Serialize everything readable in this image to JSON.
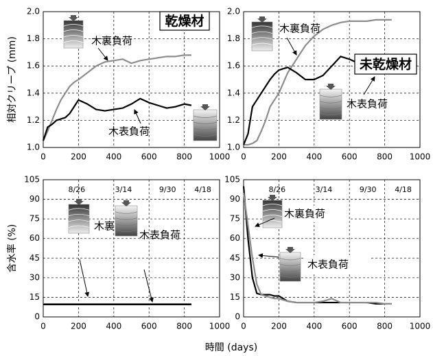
{
  "chart_data": [
    {
      "type": "line",
      "title": "乾燥材",
      "ylabel": "相対クリープ (mm)",
      "x": [
        0,
        25,
        50,
        75,
        100,
        125,
        150,
        175,
        200,
        250,
        300,
        350,
        400,
        450,
        500,
        550,
        600,
        650,
        700,
        750,
        800,
        840
      ],
      "xlim": [
        0,
        1000
      ],
      "xticks": [
        0,
        200,
        400,
        600,
        800,
        1000
      ],
      "ylim": [
        1,
        2
      ],
      "yticks": [
        {
          "value": 1,
          "label": "1.0"
        },
        1.2,
        1.4,
        1.6,
        1.8,
        {
          "value": 2,
          "label": "2.0"
        }
      ],
      "grid": true,
      "series": [
        {
          "name": "木裏負荷",
          "color": "#8c8c8c",
          "values": [
            1.05,
            1.12,
            1.2,
            1.28,
            1.35,
            1.4,
            1.45,
            1.48,
            1.5,
            1.55,
            1.6,
            1.63,
            1.64,
            1.65,
            1.62,
            1.64,
            1.65,
            1.66,
            1.67,
            1.67,
            1.68,
            1.68
          ]
        },
        {
          "name": "木表負荷",
          "color": "#000000",
          "values": [
            1.05,
            1.15,
            1.17,
            1.2,
            1.21,
            1.22,
            1.25,
            1.3,
            1.35,
            1.32,
            1.28,
            1.27,
            1.28,
            1.29,
            1.32,
            1.36,
            1.33,
            1.31,
            1.29,
            1.3,
            1.32,
            1.31
          ]
        }
      ]
    },
    {
      "type": "line",
      "title": "未乾燥材",
      "x": [
        0,
        25,
        50,
        75,
        100,
        125,
        150,
        175,
        200,
        250,
        300,
        350,
        400,
        450,
        500,
        550,
        600,
        650,
        700,
        750,
        800,
        840
      ],
      "xlim": [
        0,
        1000
      ],
      "xticks": [
        0,
        200,
        400,
        600,
        800,
        1000
      ],
      "ylim": [
        1,
        2
      ],
      "yticks": [
        {
          "value": 1,
          "label": "1.0"
        },
        1.2,
        1.4,
        1.6,
        1.8,
        {
          "value": 2,
          "label": "2.0"
        }
      ],
      "grid": true,
      "series": [
        {
          "name": "木裏負荷",
          "color": "#8c8c8c",
          "values": [
            1.02,
            1.02,
            1.03,
            1.05,
            1.12,
            1.2,
            1.3,
            1.35,
            1.4,
            1.55,
            1.65,
            1.75,
            1.82,
            1.87,
            1.9,
            1.92,
            1.93,
            1.93,
            1.93,
            1.94,
            1.94,
            1.94
          ]
        },
        {
          "name": "木表負荷",
          "color": "#000000",
          "values": [
            1.02,
            1.1,
            1.3,
            1.35,
            1.4,
            1.45,
            1.5,
            1.54,
            1.57,
            1.59,
            1.55,
            1.5,
            1.5,
            1.53,
            1.6,
            1.67,
            1.65,
            1.62,
            1.6,
            1.58,
            1.61,
            1.63
          ]
        }
      ]
    },
    {
      "type": "line",
      "ylabel": "含水率 (%)",
      "xlabel": "時間 (days)",
      "x": [
        0,
        25,
        50,
        75,
        100,
        125,
        150,
        175,
        200,
        250,
        300,
        350,
        400,
        450,
        500,
        550,
        600,
        650,
        700,
        750,
        800,
        840
      ],
      "xlim": [
        0,
        1000
      ],
      "xticks": [
        0,
        200,
        400,
        600,
        800,
        1000
      ],
      "ylim": [
        0,
        105
      ],
      "yticks": [
        0,
        15,
        30,
        45,
        60,
        75,
        90,
        105
      ],
      "grid": true,
      "dates": [
        {
          "value": 190,
          "label": "8/26"
        },
        {
          "value": 455,
          "label": "3/14"
        },
        {
          "value": 705,
          "label": "9/30"
        },
        {
          "value": 905,
          "label": "4/18"
        }
      ],
      "series": [
        {
          "name": "木裏負荷",
          "color": "#8c8c8c",
          "values": [
            10,
            10,
            10,
            10,
            10,
            10,
            10,
            10,
            10,
            10,
            10,
            10,
            10,
            10,
            10,
            10,
            10,
            10,
            10,
            10,
            10,
            10
          ]
        },
        {
          "name": "木表負荷",
          "color": "#000000",
          "values": [
            9.5,
            9.5,
            9.5,
            9.5,
            9.5,
            9.5,
            9.5,
            9.5,
            9.5,
            9.5,
            9.5,
            9.5,
            9.5,
            9.5,
            9.5,
            9.5,
            9.5,
            9.5,
            9.5,
            9.5,
            9.5,
            9.5
          ]
        }
      ]
    },
    {
      "type": "line",
      "x": [
        0,
        25,
        50,
        75,
        100,
        125,
        150,
        175,
        200,
        250,
        300,
        350,
        400,
        450,
        500,
        550,
        600,
        650,
        700,
        750,
        800,
        840
      ],
      "xlim": [
        0,
        1000
      ],
      "xticks": [
        0,
        200,
        400,
        600,
        800,
        1000
      ],
      "ylim": [
        0,
        105
      ],
      "yticks": [
        0,
        15,
        30,
        45,
        60,
        75,
        90,
        105
      ],
      "grid": true,
      "dates": [
        {
          "value": 190,
          "label": "8/26"
        },
        {
          "value": 455,
          "label": "3/14"
        },
        {
          "value": 705,
          "label": "9/30"
        },
        {
          "value": 905,
          "label": "4/18"
        }
      ],
      "series": [
        {
          "name": "木裏負荷",
          "color": "#000000",
          "values": [
            100,
            60,
            30,
            18,
            17,
            17,
            17,
            16,
            16,
            12,
            11,
            11,
            11,
            11,
            11,
            11,
            11,
            11,
            11,
            10,
            10,
            10
          ]
        },
        {
          "name": "木表負荷",
          "color": "#8c8c8c",
          "values": [
            95,
            70,
            45,
            25,
            17,
            16,
            15,
            14,
            14,
            12,
            11,
            11,
            11,
            12,
            14,
            11,
            11,
            11,
            11,
            11,
            10,
            10
          ]
        }
      ]
    }
  ]
}
